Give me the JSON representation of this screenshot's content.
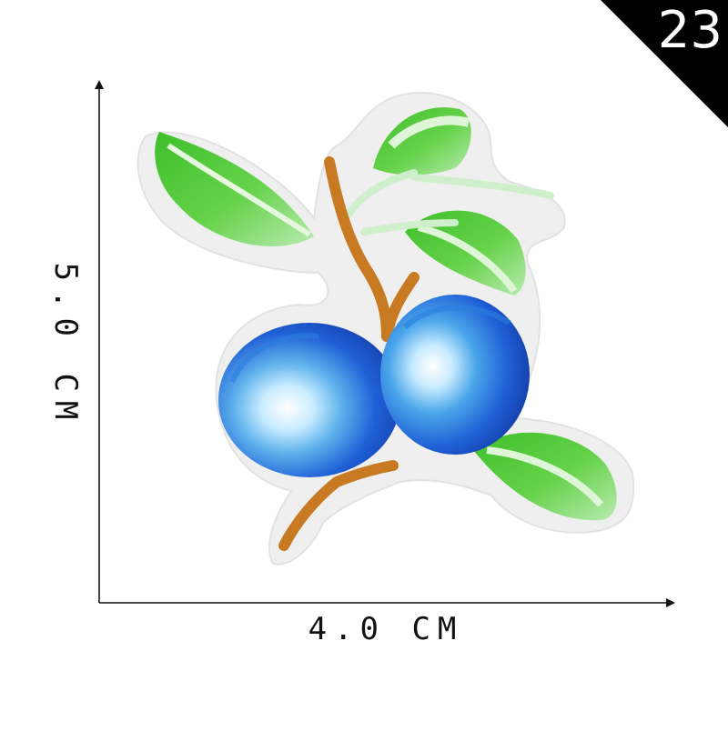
{
  "badge": {
    "number": "23",
    "color": "#000000"
  },
  "dimensions": {
    "height_label": "5.0 CM",
    "width_label": "4.0 CM"
  },
  "patch": {
    "subject": "embroidered blue plum branch patch",
    "colors": {
      "fruit": "#1f5fd6",
      "fruit_highlight": "#7fc2ee",
      "leaf": "#4fc53a",
      "stem": "#c77a22",
      "backing": "#f0f0f0"
    }
  },
  "icons": {
    "axis": "arrow-icon"
  }
}
